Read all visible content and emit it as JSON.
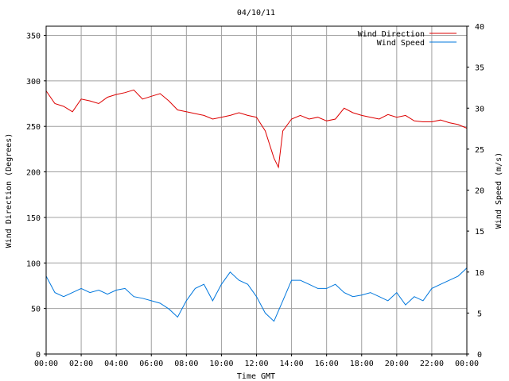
{
  "chart_data": {
    "type": "line",
    "title": "04/10/11",
    "xlabel": "Time GMT",
    "ylabel_left": "Wind Direction (Degrees)",
    "ylabel_right": "Wind Speed (m/s)",
    "x_ticks": [
      "00:00",
      "02:00",
      "04:00",
      "06:00",
      "08:00",
      "10:00",
      "12:00",
      "14:00",
      "16:00",
      "18:00",
      "20:00",
      "22:00",
      "00:00"
    ],
    "x_range_hours": [
      0,
      24
    ],
    "ylim_left": [
      0,
      360
    ],
    "yticks_left": [
      0,
      50,
      100,
      150,
      200,
      250,
      300,
      350
    ],
    "ylim_right": [
      0,
      40
    ],
    "yticks_right": [
      0,
      5,
      10,
      15,
      20,
      25,
      30,
      35,
      40
    ],
    "grid": true,
    "legend_position": "top-right",
    "series": [
      {
        "name": "Wind Direction",
        "axis": "left",
        "color": "#dd0000",
        "points": [
          [
            0.0,
            289
          ],
          [
            0.5,
            275
          ],
          [
            1.0,
            272
          ],
          [
            1.5,
            266
          ],
          [
            2.0,
            280
          ],
          [
            2.5,
            278
          ],
          [
            3.0,
            275
          ],
          [
            3.5,
            282
          ],
          [
            4.0,
            285
          ],
          [
            4.5,
            287
          ],
          [
            5.0,
            290
          ],
          [
            5.5,
            280
          ],
          [
            6.0,
            283
          ],
          [
            6.5,
            286
          ],
          [
            7.0,
            278
          ],
          [
            7.5,
            268
          ],
          [
            8.0,
            266
          ],
          [
            8.5,
            264
          ],
          [
            9.0,
            262
          ],
          [
            9.5,
            258
          ],
          [
            10.0,
            260
          ],
          [
            10.5,
            262
          ],
          [
            11.0,
            265
          ],
          [
            11.5,
            262
          ],
          [
            12.0,
            260
          ],
          [
            12.5,
            245
          ],
          [
            13.0,
            215
          ],
          [
            13.25,
            205
          ],
          [
            13.5,
            245
          ],
          [
            14.0,
            258
          ],
          [
            14.5,
            262
          ],
          [
            15.0,
            258
          ],
          [
            15.5,
            260
          ],
          [
            16.0,
            256
          ],
          [
            16.5,
            258
          ],
          [
            17.0,
            270
          ],
          [
            17.5,
            265
          ],
          [
            18.0,
            262
          ],
          [
            18.5,
            260
          ],
          [
            19.0,
            258
          ],
          [
            19.5,
            263
          ],
          [
            20.0,
            260
          ],
          [
            20.5,
            262
          ],
          [
            21.0,
            256
          ],
          [
            21.5,
            255
          ],
          [
            22.0,
            255
          ],
          [
            22.5,
            257
          ],
          [
            23.0,
            254
          ],
          [
            23.5,
            252
          ],
          [
            24.0,
            248
          ]
        ]
      },
      {
        "name": "Wind Speed",
        "axis": "right",
        "color": "#0077dd",
        "points": [
          [
            0.0,
            9.5
          ],
          [
            0.5,
            7.5
          ],
          [
            1.0,
            7.0
          ],
          [
            1.5,
            7.5
          ],
          [
            2.0,
            8.0
          ],
          [
            2.5,
            7.5
          ],
          [
            3.0,
            7.8
          ],
          [
            3.5,
            7.3
          ],
          [
            4.0,
            7.8
          ],
          [
            4.5,
            8.0
          ],
          [
            5.0,
            7.0
          ],
          [
            5.5,
            6.8
          ],
          [
            6.0,
            6.5
          ],
          [
            6.5,
            6.2
          ],
          [
            7.0,
            5.5
          ],
          [
            7.5,
            4.5
          ],
          [
            8.0,
            6.5
          ],
          [
            8.5,
            8.0
          ],
          [
            9.0,
            8.5
          ],
          [
            9.5,
            6.5
          ],
          [
            10.0,
            8.5
          ],
          [
            10.5,
            10.0
          ],
          [
            11.0,
            9.0
          ],
          [
            11.5,
            8.5
          ],
          [
            12.0,
            7.0
          ],
          [
            12.5,
            5.0
          ],
          [
            13.0,
            4.0
          ],
          [
            13.5,
            6.5
          ],
          [
            14.0,
            9.0
          ],
          [
            14.5,
            9.0
          ],
          [
            15.0,
            8.5
          ],
          [
            15.5,
            8.0
          ],
          [
            16.0,
            8.0
          ],
          [
            16.5,
            8.5
          ],
          [
            17.0,
            7.5
          ],
          [
            17.5,
            7.0
          ],
          [
            18.0,
            7.2
          ],
          [
            18.5,
            7.5
          ],
          [
            19.0,
            7.0
          ],
          [
            19.5,
            6.5
          ],
          [
            20.0,
            7.5
          ],
          [
            20.5,
            6.0
          ],
          [
            21.0,
            7.0
          ],
          [
            21.5,
            6.5
          ],
          [
            22.0,
            8.0
          ],
          [
            22.5,
            8.5
          ],
          [
            23.0,
            9.0
          ],
          [
            23.5,
            9.5
          ],
          [
            24.0,
            10.5
          ]
        ]
      }
    ]
  }
}
